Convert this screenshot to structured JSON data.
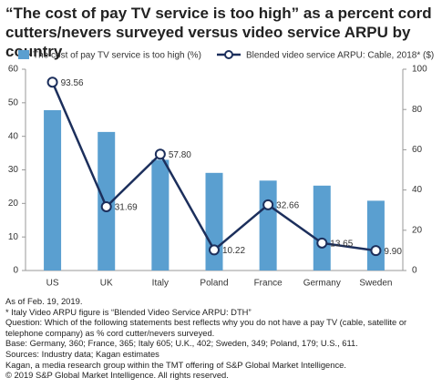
{
  "chart_data": {
    "type": "bar-line",
    "title": "“The cost of pay TV service is too high” as a percent cord cutters/nevers surveyed versus video service ARPU by country",
    "categories": [
      "US",
      "UK",
      "Italy",
      "Poland",
      "France",
      "Germany",
      "Sweden"
    ],
    "series": [
      {
        "name": "The cost of pay TV service is too high (%)",
        "type": "bar",
        "color": "#5a9fd0",
        "values": [
          47.8,
          41.3,
          33.0,
          29.1,
          26.8,
          25.3,
          20.8
        ]
      },
      {
        "name": "Blended video service ARPU: Cable, 2018* ($)",
        "type": "line",
        "axis": "y2",
        "color": "#1c2f5c",
        "values": [
          93.56,
          31.69,
          57.8,
          10.22,
          32.66,
          13.65,
          9.9
        ],
        "value_labels": [
          "93.56",
          "31.69",
          "57.80",
          "10.22",
          "32.66",
          "13.65",
          "9.90"
        ]
      }
    ],
    "ylim": [
      0,
      60
    ],
    "yticks": [
      0,
      10,
      20,
      30,
      40,
      50,
      60
    ],
    "y2lim": [
      0,
      100
    ],
    "y2ticks": [
      0,
      20,
      40,
      60,
      80,
      100
    ],
    "footnotes": [
      "As of Feb. 19, 2019.",
      "* Italy Video ARPU figure is “Blended Video Service ARPU: DTH”",
      "Question: Which of the following statements best reflects why you do not have a pay TV (cable, satellite or telephone company) as % cord cutter/nevers surveyed.",
      "Base: Germany, 360; France, 365; Italy 605; U.K., 402; Sweden, 349; Poland, 179; U.S., 611.",
      "Sources: Industry data; Kagan estimates",
      "Kagan, a media research group within the TMT offering of S&P Global Market Intelligence.",
      "© 2019 S&P Global Market Intelligence. All rights reserved."
    ]
  }
}
